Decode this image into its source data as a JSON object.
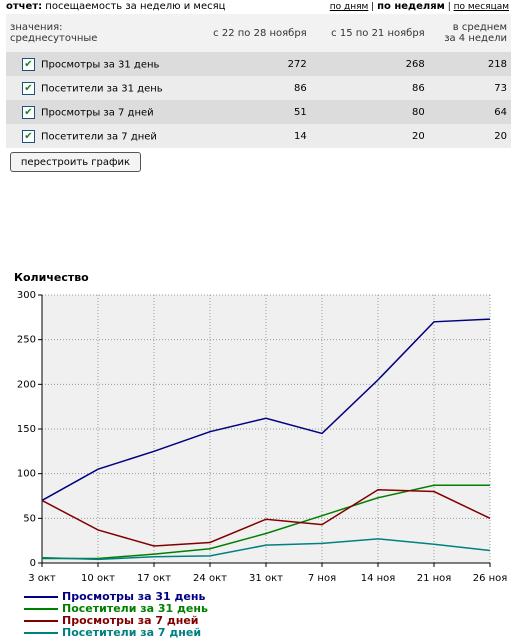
{
  "header": {
    "report_label": "отчет:",
    "report_title": "посещаемость за неделю и месяц",
    "links": [
      "по дням",
      "по неделям",
      "по месяцам"
    ],
    "separator": "|"
  },
  "table": {
    "columns": [
      "значения:\nсреднесуточные",
      "с 22 по 28 ноября",
      "с 15 по 21 ноября",
      "в среднем\nза 4 недели"
    ],
    "rows": [
      [
        "Просмотры за 31 день",
        272,
        268,
        218
      ],
      [
        "Посетители за 31 день",
        86,
        86,
        73
      ],
      [
        "Просмотры за 7 дней",
        51,
        80,
        64
      ],
      [
        "Посетители за 7 дней",
        14,
        20,
        20
      ]
    ]
  },
  "button": "перестроить график",
  "chart_data": {
    "type": "line",
    "ylabel": "Количество",
    "categories": [
      "3 окт",
      "10 окт",
      "17 окт",
      "24 окт",
      "31 окт",
      "7 ноя",
      "14 ноя",
      "21 ноя",
      "26 ноя"
    ],
    "series": [
      {
        "name": "Просмотры за 31 день",
        "color": "#000080",
        "values": [
          70,
          105,
          125,
          147,
          162,
          145,
          205,
          270,
          273
        ]
      },
      {
        "name": "Посетители за 31 день",
        "color": "#008000",
        "values": [
          5,
          5,
          10,
          16,
          33,
          53,
          73,
          87,
          87
        ]
      },
      {
        "name": "Просмотры за 7 дней",
        "color": "#800000",
        "values": [
          70,
          37,
          19,
          23,
          49,
          43,
          82,
          80,
          50
        ]
      },
      {
        "name": "Посетители за 7 дней",
        "color": "#008080",
        "values": [
          6,
          4,
          7,
          8,
          20,
          22,
          27,
          21,
          14
        ]
      }
    ],
    "ylim": [
      0,
      300
    ],
    "yticks": [
      0,
      50,
      100,
      150,
      200,
      250,
      300
    ],
    "grid": true
  }
}
